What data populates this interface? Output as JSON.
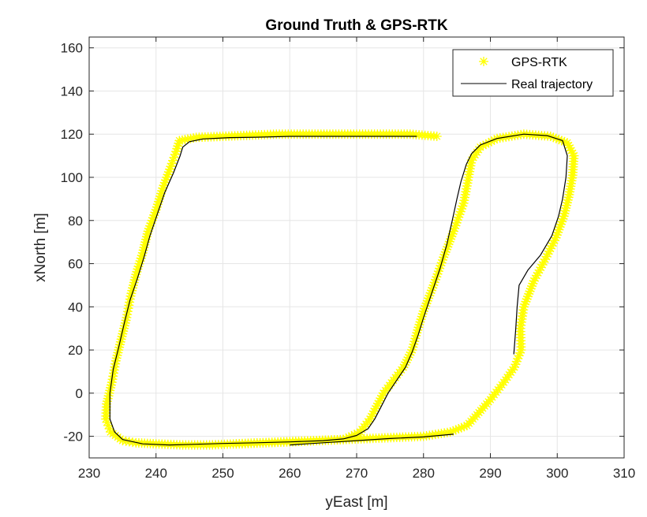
{
  "chart_data": {
    "type": "line",
    "title": "Ground Truth & GPS-RTK",
    "xlabel": "yEast [m]",
    "ylabel": "xNorth [m]",
    "xlim": [
      230,
      310
    ],
    "ylim": [
      -30,
      165
    ],
    "x_ticks": [
      230,
      240,
      250,
      260,
      270,
      280,
      290,
      300,
      310
    ],
    "y_ticks": [
      -20,
      0,
      20,
      40,
      60,
      80,
      100,
      120,
      140,
      160
    ],
    "grid": true,
    "legend_position": "top-right",
    "series": [
      {
        "name": "GPS-RTK",
        "style": "asterisk-markers",
        "color": "#FFFF00",
        "x": [
          282,
          278,
          274,
          270,
          266,
          262,
          258,
          254,
          250,
          246,
          243.5,
          243,
          242.2,
          241,
          240,
          238.8,
          238,
          237,
          236.2,
          235.6,
          234.8,
          234,
          233.4,
          232.6,
          232.5,
          233.2,
          235,
          237,
          240,
          244,
          248,
          252,
          256,
          260,
          264,
          268,
          270.5,
          272,
          273,
          274,
          275.5,
          277,
          278.3,
          279,
          280,
          281.5,
          283,
          284.5,
          286,
          286.5,
          287.2,
          288.5,
          291,
          295,
          299,
          301.5,
          302.5,
          302.3,
          301.8,
          301,
          299.8,
          298.2,
          296.5,
          295,
          294.5,
          294.6,
          293.6,
          292,
          290,
          288,
          286.5,
          284,
          280,
          276,
          272,
          268,
          264,
          260,
          256,
          252
        ],
        "y": [
          119,
          120,
          120,
          120,
          120,
          120,
          120,
          119.5,
          119,
          118.5,
          117,
          112,
          105,
          95,
          85,
          75,
          65,
          55,
          45,
          35,
          25,
          15,
          5,
          -5,
          -12,
          -18,
          -22,
          -23,
          -23.5,
          -24,
          -24,
          -23.5,
          -23,
          -22.5,
          -22,
          -21.5,
          -18,
          -12,
          -6,
          0,
          6,
          12,
          20,
          28,
          38,
          50,
          63,
          75,
          88,
          96,
          108,
          114,
          118,
          120,
          119,
          116,
          110,
          101,
          92,
          82,
          72,
          62,
          52,
          40,
          30,
          20,
          12,
          5,
          -3,
          -10,
          -15,
          -18,
          -20,
          -20.5,
          -21,
          -21.5,
          -22,
          -22.5,
          -23,
          -23.5
        ]
      },
      {
        "name": "Real trajectory",
        "style": "solid-line",
        "color": "#000000",
        "x": [
          279,
          275,
          270,
          265,
          260,
          255,
          251,
          247,
          245,
          244,
          243.6,
          242.6,
          241.3,
          240.2,
          239.1,
          238.2,
          237.2,
          236.1,
          235.3,
          234.4,
          233.6,
          233.1,
          233.1,
          233.8,
          235,
          238,
          242,
          246,
          250,
          255,
          260,
          265,
          268,
          270,
          271.7,
          272.7,
          273.7,
          274.7,
          276,
          277.3,
          278.3,
          279.2,
          280,
          281.3,
          282.5,
          283.5,
          284.3,
          285,
          285.6,
          286.4,
          287.2,
          288.5,
          291,
          295,
          298.5,
          300.8,
          301.5,
          301.3,
          300.8,
          300.2,
          299.2,
          297.5,
          295.6,
          294.3,
          294,
          293.8,
          293.5
        ],
        "y": [
          119,
          119,
          119,
          119,
          119,
          118.6,
          118.4,
          117.8,
          116.5,
          114,
          110,
          102,
          93,
          83,
          73,
          63,
          53,
          43,
          33,
          21,
          11,
          0,
          -12,
          -18,
          -21.5,
          -23.5,
          -24,
          -23.7,
          -23.3,
          -23,
          -22.6,
          -22,
          -21.2,
          -19.6,
          -16.5,
          -12,
          -6,
          0,
          6,
          12,
          19,
          27,
          35,
          47,
          58,
          69,
          80,
          90,
          98,
          106,
          111,
          115,
          118,
          120,
          119.3,
          117,
          110,
          100,
          90,
          82,
          73,
          64,
          57,
          50,
          40,
          30,
          18
        ]
      },
      {
        "name": "Real trajectory",
        "style": "solid-line",
        "color": "#000000",
        "x": [
          260,
          265,
          270,
          275,
          280,
          284.5
        ],
        "y": [
          -24,
          -23,
          -22,
          -21,
          -20.3,
          -19
        ]
      }
    ]
  }
}
